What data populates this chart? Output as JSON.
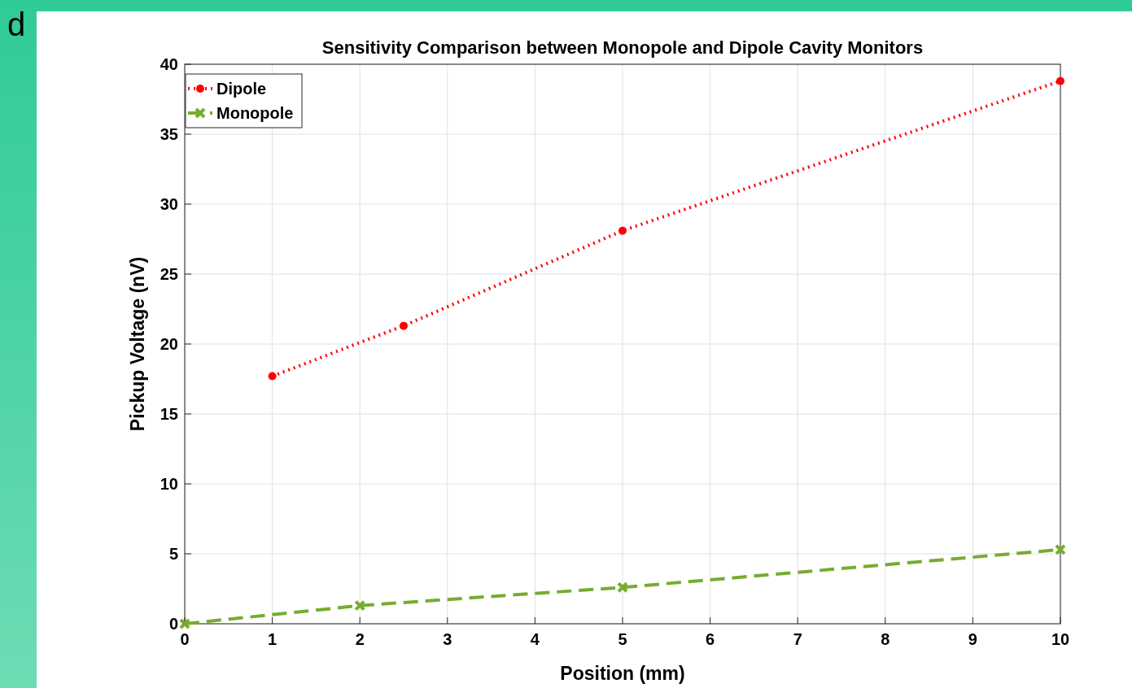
{
  "chart_data": {
    "type": "line",
    "title": "Sensitivity Comparison between Monopole and Dipole Cavity Monitors",
    "xlabel": "Position (mm)",
    "ylabel": "Pickup Voltage (nV)",
    "annotations": [
      "d"
    ],
    "xlim": [
      0,
      10
    ],
    "xticks": [
      0,
      1,
      2,
      3,
      4,
      5,
      6,
      7,
      8,
      9,
      10
    ],
    "ylim": [
      0,
      40
    ],
    "yticks": [
      0,
      5,
      10,
      15,
      20,
      25,
      30,
      35,
      40
    ],
    "grid": true,
    "legend": "top left",
    "series": [
      {
        "name": "Dipole",
        "color": "#ff0000",
        "x": [
          1,
          2.5,
          5,
          10
        ],
        "values": [
          17.7,
          21.3,
          28.1,
          38.8
        ],
        "marker": "circle",
        "line_style": "dotted"
      },
      {
        "name": "Monopole",
        "color": "#77ac30",
        "x": [
          0,
          2,
          5,
          10
        ],
        "values": [
          0,
          1.3,
          2.6,
          5.3
        ],
        "marker": "cross",
        "line_style": "dashed"
      }
    ]
  }
}
